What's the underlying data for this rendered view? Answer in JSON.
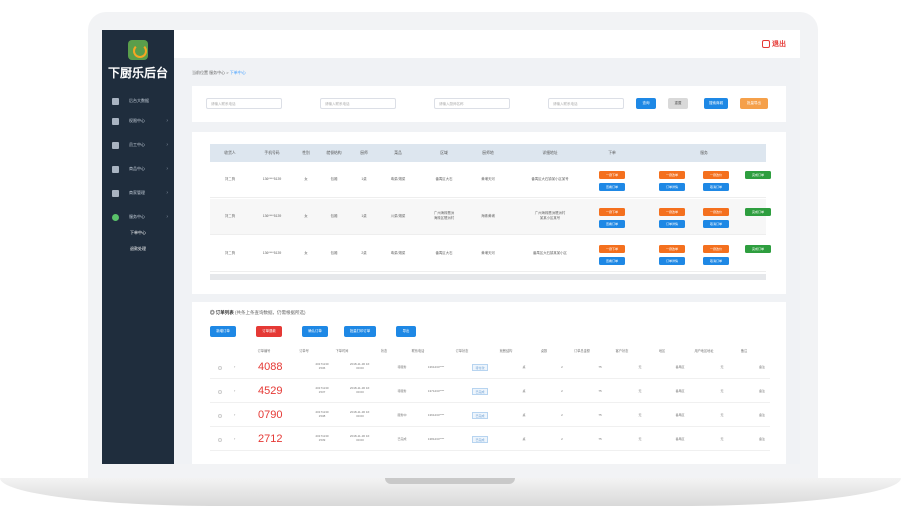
{
  "app": {
    "title": "下厨乐后台"
  },
  "topbar": {
    "exit_label": "退出"
  },
  "sidebar": {
    "items": [
      {
        "label": "后台大数据",
        "icon": "monitor-icon"
      },
      {
        "label": "权限中心",
        "icon": "shield-icon"
      },
      {
        "label": "员工中心",
        "icon": "user-icon"
      },
      {
        "label": "商品中心",
        "icon": "grid-icon"
      },
      {
        "label": "商家管理",
        "icon": "shop-icon"
      },
      {
        "label": "服务中心",
        "icon": "service-icon"
      }
    ],
    "sub_items": [
      "下单中心",
      "退款处理"
    ]
  },
  "breadcrumb": {
    "home": "当前位置",
    "parent": "服务中心 >",
    "current": "下单中心"
  },
  "filters": {
    "inputs": [
      {
        "placeholder": "请输入联系电话"
      },
      {
        "placeholder": "请输入联系电话"
      },
      {
        "placeholder": "请输入厨师名称"
      },
      {
        "placeholder": "请输入联系电话"
      }
    ],
    "buttons": [
      {
        "label": "查询",
        "color": "#1e88e5"
      },
      {
        "label": "重置",
        "color": "#d9d9d9"
      },
      {
        "label": "搜索商城",
        "color": "#1e88e5"
      },
      {
        "label": "批量导出",
        "color": "#f5a04a"
      }
    ]
  },
  "tasks": {
    "headers": [
      "收货人",
      "手机号码",
      "性别",
      "就餐结构",
      "厨师",
      "菜品",
      "区域",
      "厨师地",
      "详细地址",
      "下单",
      "服务"
    ],
    "rows": [
      {
        "name": "刘二狗",
        "phone": "136****5139",
        "gender": "女",
        "structure": "包厢",
        "cook": "1桌",
        "dish": "粤菜/湘菜",
        "area": "番禺区大石",
        "origin": "黄埔天河",
        "address": "番禺区大石镇某小区某号"
      },
      {
        "name": "刘二狗",
        "phone": "136****5139",
        "gender": "女",
        "structure": "包厢",
        "cook": "1桌",
        "dish": "川菜/湘菜",
        "area": "广州海珠琶洲\n海珠区琶洲村",
        "origin": "海珠黄埔",
        "address": "广州海珠琶洲琶洲村\n某某小区某号"
      },
      {
        "name": "刘二狗",
        "phone": "136****5139",
        "gender": "女",
        "structure": "包厢",
        "cook": "2桌",
        "dish": "粤菜/湘菜",
        "area": "番禺区大石",
        "origin": "黄埔天河",
        "address": "番禺区大石镇某某小区"
      }
    ],
    "action_labels": {
      "dispatch": "一键下单",
      "view": "查看订单",
      "change": "一键改单",
      "cancel": "取消订单",
      "update": "一键改价",
      "detail": "订单详情",
      "complete": "完成订单"
    },
    "colors": {
      "orange": "#f4701e",
      "blue": "#1e88e5",
      "green": "#2e9e3f"
    }
  },
  "orders": {
    "title": "订单列表",
    "note": "(共条上条查询数据，仍需根据所选)",
    "buttons": [
      {
        "label": "新增订单",
        "color": "#1e88e5"
      },
      {
        "label": "订单退款",
        "color": "#e53935"
      },
      {
        "label": "确认订单",
        "color": "#1e88e5"
      },
      {
        "label": "批量打印订单",
        "color": "#1e88e5"
      },
      {
        "label": "导出",
        "color": "#1e88e5"
      }
    ],
    "headers": [
      "订单编号",
      "订单号",
      "下单时间",
      "状态",
      "联系电话",
      "订单状态",
      "就餐结构",
      "桌数",
      "订单总金额",
      "客户状态",
      "地区",
      "用户地区地址",
      "备注"
    ],
    "rows": [
      {
        "id": "4088",
        "order_no": "20171130\n1536",
        "time": "2018-11-30 16:\n00:00",
        "status": "待服务",
        "phone": "1361234****",
        "state": "待付款",
        "structure": "桌",
        "tables": "2",
        "amount": "75",
        "customer": "无",
        "region": "番禺区",
        "address": "无",
        "remark": "备注"
      },
      {
        "id": "4529",
        "order_no": "20171130\n1537",
        "time": "2018-11-30 16:\n00:00",
        "status": "待服务",
        "phone": "1371234****",
        "state": "已完成",
        "structure": "桌",
        "tables": "2",
        "amount": "75",
        "customer": "无",
        "region": "番禺区",
        "address": "无",
        "remark": "备注"
      },
      {
        "id": "0790",
        "order_no": "20171130\n1538",
        "time": "2018-11-30 16:\n00:00",
        "status": "服务中",
        "phone": "1361234****",
        "state": "已完成",
        "structure": "桌",
        "tables": "2",
        "amount": "75",
        "customer": "无",
        "region": "番禺区",
        "address": "无",
        "remark": "备注"
      },
      {
        "id": "2712",
        "order_no": "20171130\n1539",
        "time": "2018-11-30 16:\n00:00",
        "status": "已完成",
        "phone": "1381234****",
        "state": "已完成",
        "structure": "桌",
        "tables": "2",
        "amount": "75",
        "customer": "无",
        "region": "番禺区",
        "address": "无",
        "remark": "备注"
      }
    ]
  }
}
